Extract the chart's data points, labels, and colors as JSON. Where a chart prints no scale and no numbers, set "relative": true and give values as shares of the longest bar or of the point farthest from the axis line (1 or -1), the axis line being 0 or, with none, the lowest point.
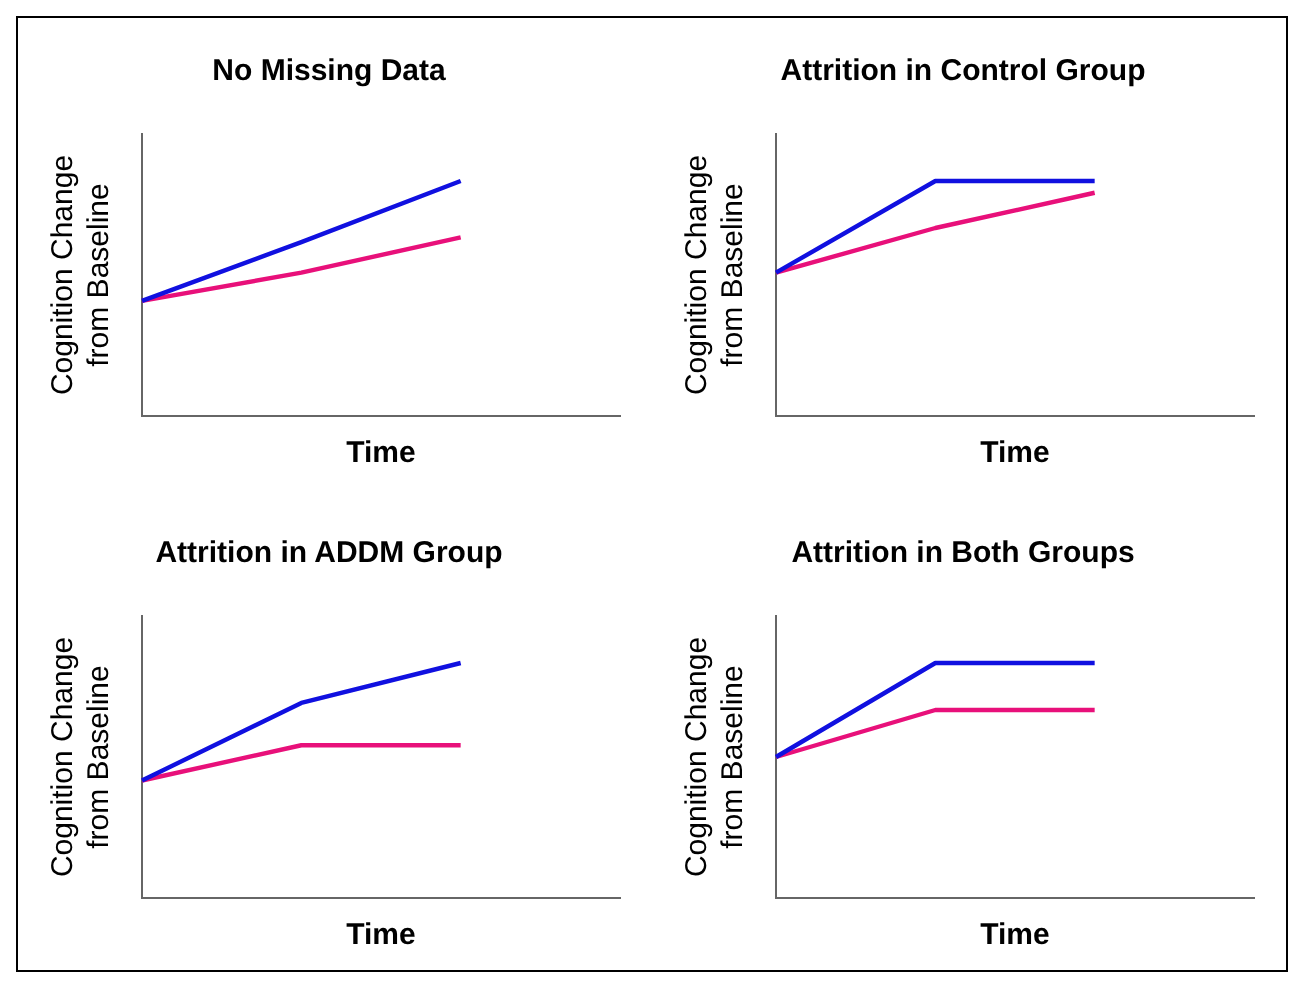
{
  "chart_data": [
    {
      "type": "line",
      "title": "No Missing Data",
      "xlabel": "Time",
      "ylabel": "Cognition Change\nfrom Baseline",
      "relative": true,
      "categories": [
        null,
        null,
        null,
        null
      ],
      "legend": false,
      "grid": false,
      "tick_labels": false,
      "marker": "none",
      "series": [
        {
          "color": "#1010e0",
          "values": [
            0.49,
            0.74,
            1,
            null
          ]
        },
        {
          "color": "#e8107a",
          "values": [
            0.49,
            0.61,
            0.76,
            null
          ]
        }
      ]
    },
    {
      "type": "line",
      "title": "Attrition in Control Group",
      "xlabel": "Time",
      "ylabel": "Cognition Change\nfrom Baseline",
      "relative": true,
      "categories": [
        null,
        null,
        null,
        null
      ],
      "legend": false,
      "grid": false,
      "tick_labels": false,
      "marker": "none",
      "series": [
        {
          "color": "#1010e0",
          "values": [
            0.61,
            1,
            1,
            null
          ]
        },
        {
          "color": "#e8107a",
          "values": [
            0.61,
            0.8,
            0.95,
            null
          ]
        }
      ]
    },
    {
      "type": "line",
      "title": "Attrition in ADDM Group",
      "xlabel": "Time",
      "ylabel": "Cognition Change\nfrom Baseline",
      "relative": true,
      "categories": [
        null,
        null,
        null,
        null
      ],
      "legend": false,
      "grid": false,
      "tick_labels": false,
      "marker": "none",
      "series": [
        {
          "color": "#1010e0",
          "values": [
            0.5,
            0.83,
            1,
            null
          ]
        },
        {
          "color": "#e8107a",
          "values": [
            0.5,
            0.65,
            0.65,
            null
          ]
        }
      ]
    },
    {
      "type": "line",
      "title": "Attrition in Both Groups",
      "xlabel": "Time",
      "ylabel": "Cognition Change\nfrom Baseline",
      "relative": true,
      "categories": [
        null,
        null,
        null,
        null
      ],
      "legend": false,
      "grid": false,
      "tick_labels": false,
      "marker": "none",
      "series": [
        {
          "color": "#1010e0",
          "values": [
            0.6,
            1,
            1,
            null
          ]
        },
        {
          "color": "#e8107a",
          "values": [
            0.6,
            0.8,
            0.8,
            null
          ]
        }
      ]
    }
  ]
}
